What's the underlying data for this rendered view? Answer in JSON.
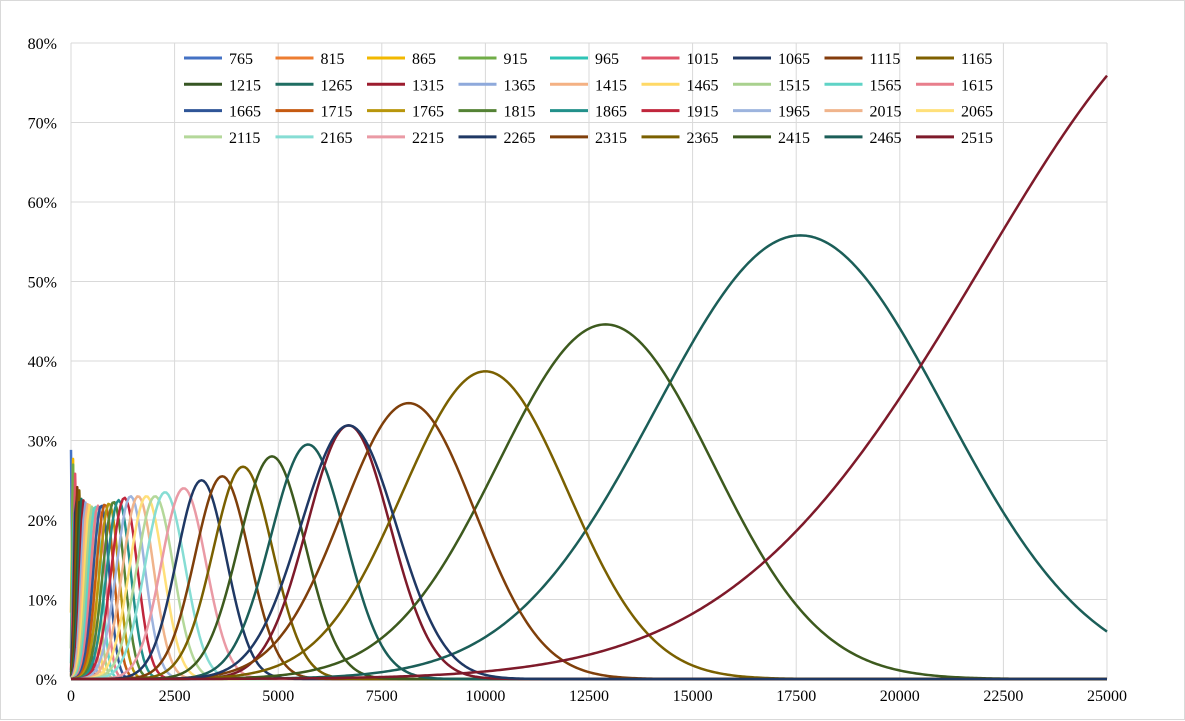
{
  "chart_data": {
    "type": "line",
    "title": "",
    "xlabel": "",
    "ylabel": "",
    "xlim": [
      0,
      25000
    ],
    "ylim": [
      0,
      0.8
    ],
    "x_ticks": [
      0,
      2500,
      5000,
      7500,
      10000,
      12500,
      15000,
      17500,
      20000,
      22500,
      25000
    ],
    "x_tick_labels": [
      "0",
      "2500",
      "5000",
      "7500",
      "10000",
      "12500",
      "15000",
      "17500",
      "20000",
      "22500",
      "25000"
    ],
    "y_ticks": [
      0,
      0.1,
      0.2,
      0.3,
      0.4,
      0.5,
      0.6,
      0.7,
      0.8
    ],
    "y_tick_labels": [
      "0%",
      "10%",
      "20%",
      "30%",
      "40%",
      "50%",
      "60%",
      "70%",
      "80%"
    ],
    "grid": true,
    "legend_position": "top",
    "series": [
      {
        "name": "765",
        "color": "#4472C4",
        "peak_x": 10,
        "peak_y": 0.36,
        "sigma": 15
      },
      {
        "name": "815",
        "color": "#ED7D31",
        "peak_x": 25,
        "peak_y": 0.34,
        "sigma": 20
      },
      {
        "name": "865",
        "color": "#F2B800",
        "peak_x": 40,
        "peak_y": 0.3,
        "sigma": 25
      },
      {
        "name": "915",
        "color": "#70AD47",
        "peak_x": 60,
        "peak_y": 0.285,
        "sigma": 30
      },
      {
        "name": "965",
        "color": "#2EC4B6",
        "peak_x": 80,
        "peak_y": 0.27,
        "sigma": 35
      },
      {
        "name": "1015",
        "color": "#E0546A",
        "peak_x": 105,
        "peak_y": 0.26,
        "sigma": 42
      },
      {
        "name": "1065",
        "color": "#203864",
        "peak_x": 130,
        "peak_y": 0.25,
        "sigma": 50
      },
      {
        "name": "1115",
        "color": "#843C0C",
        "peak_x": 160,
        "peak_y": 0.245,
        "sigma": 58
      },
      {
        "name": "1165",
        "color": "#7F6000",
        "peak_x": 190,
        "peak_y": 0.24,
        "sigma": 66
      },
      {
        "name": "1215",
        "color": "#375623",
        "peak_x": 225,
        "peak_y": 0.235,
        "sigma": 76
      },
      {
        "name": "1265",
        "color": "#1F6E62",
        "peak_x": 265,
        "peak_y": 0.23,
        "sigma": 86
      },
      {
        "name": "1315",
        "color": "#9C1C2E",
        "peak_x": 305,
        "peak_y": 0.225,
        "sigma": 96
      },
      {
        "name": "1365",
        "color": "#8EA9DB",
        "peak_x": 350,
        "peak_y": 0.222,
        "sigma": 108
      },
      {
        "name": "1415",
        "color": "#F4B183",
        "peak_x": 400,
        "peak_y": 0.22,
        "sigma": 120
      },
      {
        "name": "1465",
        "color": "#FFD966",
        "peak_x": 455,
        "peak_y": 0.219,
        "sigma": 133
      },
      {
        "name": "1515",
        "color": "#A9D18E",
        "peak_x": 515,
        "peak_y": 0.218,
        "sigma": 147
      },
      {
        "name": "1565",
        "color": "#5FD3C6",
        "peak_x": 580,
        "peak_y": 0.218,
        "sigma": 162
      },
      {
        "name": "1615",
        "color": "#E87E8C",
        "peak_x": 650,
        "peak_y": 0.218,
        "sigma": 178
      },
      {
        "name": "1665",
        "color": "#2F5597",
        "peak_x": 730,
        "peak_y": 0.219,
        "sigma": 196
      },
      {
        "name": "1715",
        "color": "#C55A11",
        "peak_x": 820,
        "peak_y": 0.22,
        "sigma": 216
      },
      {
        "name": "1765",
        "color": "#B8960C",
        "peak_x": 920,
        "peak_y": 0.221,
        "sigma": 238
      },
      {
        "name": "1815",
        "color": "#548235",
        "peak_x": 1030,
        "peak_y": 0.223,
        "sigma": 262
      },
      {
        "name": "1865",
        "color": "#22908A",
        "peak_x": 1150,
        "peak_y": 0.225,
        "sigma": 288
      },
      {
        "name": "1915",
        "color": "#C0263C",
        "peak_x": 1290,
        "peak_y": 0.228,
        "sigma": 316
      },
      {
        "name": "1965",
        "color": "#9DB4DE",
        "peak_x": 1440,
        "peak_y": 0.23,
        "sigma": 345
      },
      {
        "name": "2015",
        "color": "#F0B48C",
        "peak_x": 1620,
        "peak_y": 0.23,
        "sigma": 375
      },
      {
        "name": "2065",
        "color": "#FFE07A",
        "peak_x": 1820,
        "peak_y": 0.23,
        "sigma": 410
      },
      {
        "name": "2115",
        "color": "#B4D89A",
        "peak_x": 2030,
        "peak_y": 0.23,
        "sigma": 445
      },
      {
        "name": "2165",
        "color": "#86DDD4",
        "peak_x": 2270,
        "peak_y": 0.235,
        "sigma": 485
      },
      {
        "name": "2215",
        "color": "#EA9AA5",
        "peak_x": 2720,
        "peak_y": 0.24,
        "sigma": 540
      },
      {
        "name": "2265",
        "color": "#1F3864",
        "peak_x": 3150,
        "peak_y": 0.25,
        "sigma": 600
      },
      {
        "name": "2315",
        "color": "#7F3F0A",
        "peak_x": 3650,
        "peak_y": 0.255,
        "sigma": 660
      },
      {
        "name": "2365",
        "color": "#7A6000",
        "peak_x": 4150,
        "peak_y": 0.267,
        "sigma": 720
      },
      {
        "name": "2415",
        "color": "#3D5A1E",
        "peak_x": 4850,
        "peak_y": 0.28,
        "sigma": 800
      },
      {
        "name": "2465",
        "color": "#1B5E58",
        "peak_x": 5720,
        "peak_y": 0.295,
        "sigma": 900
      },
      {
        "name": "2515",
        "color": "#7E1A2A",
        "peak_x": 6700,
        "peak_y": 0.319,
        "sigma": 1000
      }
    ],
    "overlay_curves": [
      {
        "legend_ref": "2465",
        "color": "#1B5E58",
        "peak_x": 17600,
        "peak_y": 0.558,
        "sigma": 3500
      },
      {
        "legend_ref": "2415",
        "color": "#3D5A1E",
        "peak_x": 12900,
        "peak_y": 0.446,
        "sigma": 2600
      },
      {
        "legend_ref": "2365",
        "color": "#7A6000",
        "peak_x": 10000,
        "peak_y": 0.387,
        "sigma": 2000
      },
      {
        "legend_ref": "2315",
        "color": "#7F3F0A",
        "peak_x": 8150,
        "peak_y": 0.347,
        "sigma": 1600
      },
      {
        "legend_ref": "2265",
        "color": "#1F3864",
        "peak_x": 6700,
        "peak_y": 0.319,
        "sigma": 1150
      },
      {
        "legend_ref": "2515",
        "color": "#7E1A2A",
        "peak_x": 28000,
        "peak_y": 0.86,
        "sigma": 6000
      }
    ]
  }
}
